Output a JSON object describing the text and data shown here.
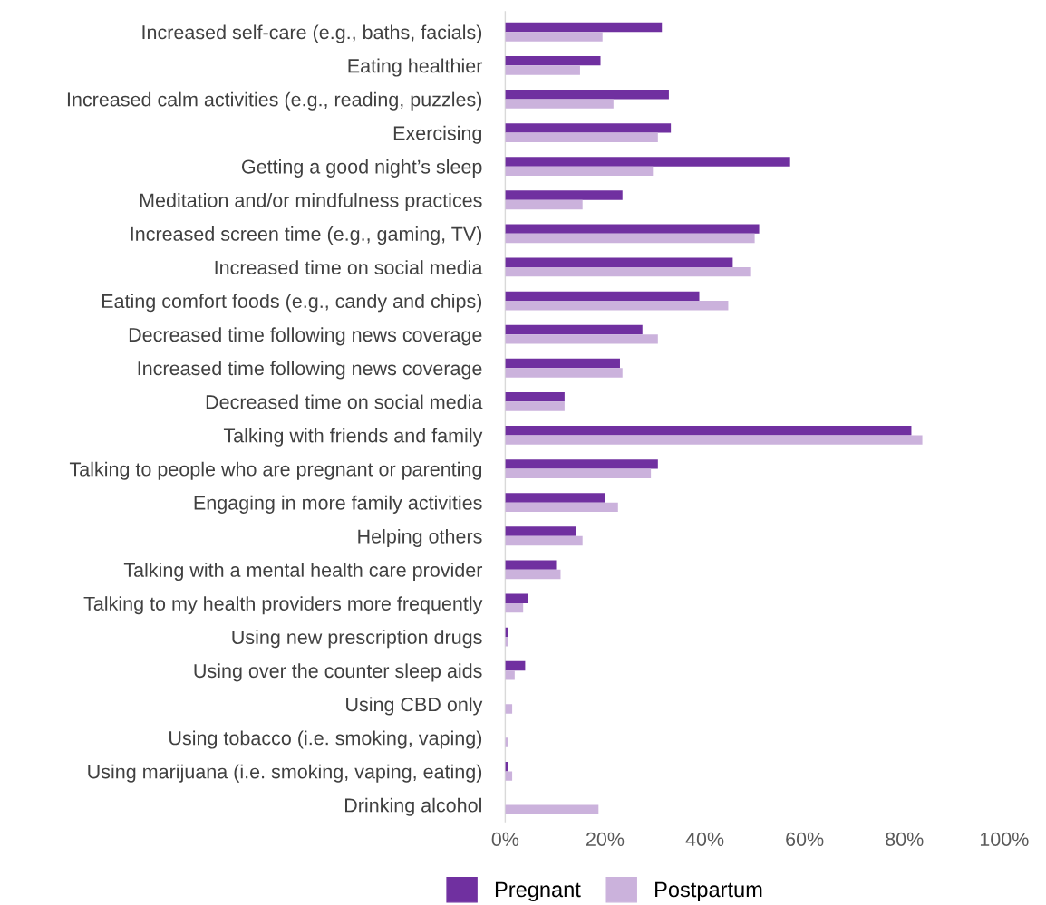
{
  "chart_data": {
    "type": "bar",
    "orientation": "horizontal",
    "categories": [
      "Increased self-care (e.g., baths, facials)",
      "Eating healthier",
      "Increased calm activities (e.g., reading, puzzles)",
      "Exercising",
      "Getting a good night’s sleep",
      "Meditation and/or mindfulness practices",
      "Increased screen time (e.g., gaming, TV)",
      "Increased time on social media",
      "Eating comfort foods (e.g., candy and chips)",
      "Decreased time following news coverage",
      "Increased time following news coverage",
      "Decreased time on social media",
      "Talking with friends and family",
      "Talking to people who are pregnant or parenting",
      "Engaging in more family activities",
      "Helping others",
      "Talking with a mental health care provider",
      "Talking to my health providers more frequently",
      "Using new prescription drugs",
      "Using over the counter sleep aids",
      "Using CBD only",
      "Using tobacco (i.e. smoking, vaping)",
      "Using marijuana (i.e. smoking, vaping, eating)",
      "Drinking alcohol"
    ],
    "series": [
      {
        "name": "Pregnant",
        "color": "#7030a0",
        "values": [
          31.4,
          19.1,
          32.8,
          33.2,
          57.1,
          23.5,
          50.9,
          45.6,
          38.9,
          27.5,
          23.0,
          11.9,
          81.4,
          30.6,
          20.0,
          14.2,
          10.2,
          4.5,
          0.5,
          4.0,
          0,
          0,
          0.5,
          0
        ]
      },
      {
        "name": "Postpartum",
        "color": "#cbb2dc",
        "values": [
          19.5,
          15.0,
          21.7,
          30.6,
          29.6,
          15.5,
          50.0,
          49.1,
          44.7,
          30.6,
          23.5,
          11.9,
          83.6,
          29.2,
          22.6,
          15.5,
          11.1,
          3.6,
          0.5,
          1.9,
          1.4,
          0.5,
          1.4,
          18.7
        ]
      }
    ],
    "xlim": [
      0,
      100
    ],
    "xticks": [
      {
        "value": 0,
        "label": "0%"
      },
      {
        "value": 20,
        "label": "20%"
      },
      {
        "value": 40,
        "label": "40%"
      },
      {
        "value": 60,
        "label": "60%"
      },
      {
        "value": 80,
        "label": "80%"
      },
      {
        "value": 100,
        "label": "100%"
      }
    ],
    "grid": false,
    "legend": "bottom"
  }
}
